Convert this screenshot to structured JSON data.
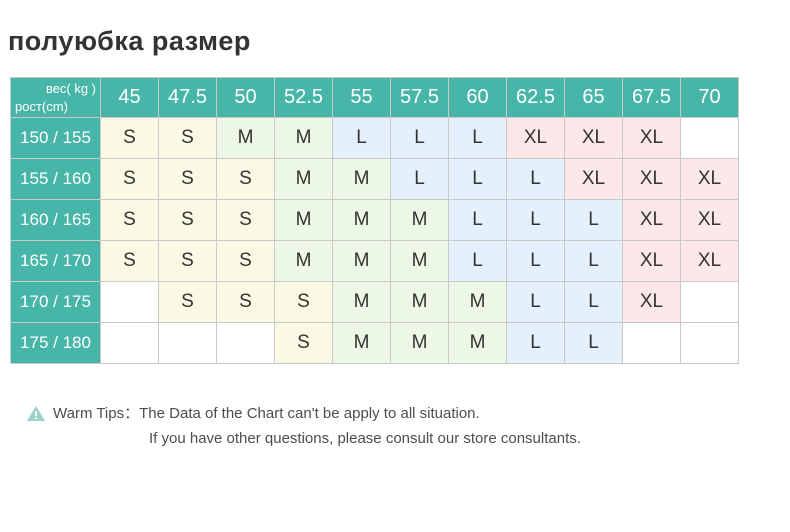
{
  "chart_data": {
    "type": "table",
    "title": "полуюбка размер",
    "corner": {
      "top_right_label": "вес( kg )",
      "bottom_left_label": "рост(cm)"
    },
    "columns_weight_kg": [
      45,
      47.5,
      50,
      52.5,
      55,
      57.5,
      60,
      62.5,
      65,
      67.5,
      70
    ],
    "rows": [
      {
        "height_cm": "150 / 155",
        "sizes": [
          "S",
          "S",
          "M",
          "M",
          "L",
          "L",
          "L",
          "XL",
          "XL",
          "XL",
          ""
        ]
      },
      {
        "height_cm": "155 / 160",
        "sizes": [
          "S",
          "S",
          "S",
          "M",
          "M",
          "L",
          "L",
          "L",
          "XL",
          "XL",
          "XL"
        ]
      },
      {
        "height_cm": "160 / 165",
        "sizes": [
          "S",
          "S",
          "S",
          "M",
          "M",
          "M",
          "L",
          "L",
          "L",
          "XL",
          "XL"
        ]
      },
      {
        "height_cm": "165 / 170",
        "sizes": [
          "S",
          "S",
          "S",
          "M",
          "M",
          "M",
          "L",
          "L",
          "L",
          "XL",
          "XL"
        ]
      },
      {
        "height_cm": "170 / 175",
        "sizes": [
          "",
          "S",
          "S",
          "S",
          "M",
          "M",
          "M",
          "L",
          "L",
          "XL",
          ""
        ]
      },
      {
        "height_cm": "175 / 180",
        "sizes": [
          "",
          "",
          "",
          "S",
          "M",
          "M",
          "M",
          "L",
          "L",
          "",
          ""
        ]
      }
    ],
    "size_colors": {
      "S": "#fafae4",
      "M": "#edf7e5",
      "L": "#e4f0fb",
      "XL": "#fce8e8",
      "": "#ffffff"
    },
    "layout": {
      "grid": "on",
      "header_position": "top-and-left"
    }
  },
  "colors": {
    "accent-teal": "#47b6a8",
    "table-border": "#c9c9c9",
    "title-text": "#333333",
    "cell-text": "#333333",
    "tips-text": "#4d4d4d",
    "tips-icon": "#9ed3cc"
  },
  "tips": {
    "icon": "warning-triangle-icon",
    "label": "Warm Tips：",
    "line1": "The Data of the Chart can't be apply to all situation.",
    "line2": "If you have other questions, please consult our store consultants."
  }
}
